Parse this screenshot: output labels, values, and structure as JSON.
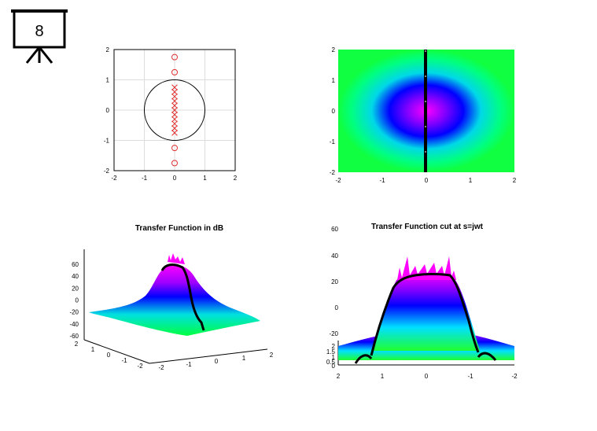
{
  "slide": {
    "number": "8"
  },
  "chart_data": [
    {
      "type": "scatter",
      "xlim": [
        -2,
        2
      ],
      "ylim": [
        -2,
        2
      ],
      "xticks": [
        "-2",
        "-1",
        "0",
        "1",
        "2"
      ],
      "yticks": [
        "2",
        "1",
        "0",
        "-1",
        "-2"
      ],
      "grid": true,
      "unit_circle": {
        "center": [
          0,
          0
        ],
        "radius": 1
      },
      "zeros": [
        [
          0,
          1.75
        ],
        [
          0,
          1.25
        ],
        [
          0,
          -1.25
        ],
        [
          0,
          -1.75
        ]
      ],
      "poles": [
        [
          0,
          0.75
        ],
        [
          0,
          0.6
        ],
        [
          0,
          0.45
        ],
        [
          0,
          0.3
        ],
        [
          0,
          0.15
        ],
        [
          0,
          0.0
        ],
        [
          0,
          -0.15
        ],
        [
          0,
          -0.3
        ],
        [
          0,
          -0.45
        ],
        [
          0,
          -0.6
        ],
        [
          0,
          -0.75
        ]
      ],
      "colors": {
        "markers": "#e03030",
        "circle": "#000000",
        "grid": "#dddddd"
      }
    },
    {
      "type": "heatmap",
      "xlim": [
        -2,
        2
      ],
      "ylim": [
        -2,
        2
      ],
      "xticks": [
        "-2",
        "-1",
        "0",
        "1",
        "2"
      ],
      "yticks": [
        "2",
        "1",
        "0",
        "-1",
        "-2"
      ],
      "colors": {
        "low": "#00ff60",
        "mid1": "#00e0e0",
        "mid2": "#0000ff",
        "high": "#ff00ff"
      },
      "cut_line_x": 0
    },
    {
      "type": "surface",
      "title": "Transfer Function in dB",
      "zticks": [
        "60",
        "40",
        "20",
        "0",
        "-20",
        "-40",
        "-60"
      ],
      "xticks": [
        "-2",
        "-1",
        "0",
        "1",
        "2"
      ],
      "yticks": [
        "2",
        "1",
        "0",
        "-1",
        "-2"
      ]
    },
    {
      "type": "surface",
      "title": "Transfer Function cut at s=jwt",
      "zticks": [
        "60",
        "40",
        "20",
        "0",
        "-20"
      ],
      "zticks_small": [
        "2",
        "1.5",
        "1",
        "0.5",
        "0"
      ],
      "xticks": [
        "2",
        "1",
        "0",
        "-1",
        "-2"
      ]
    }
  ]
}
